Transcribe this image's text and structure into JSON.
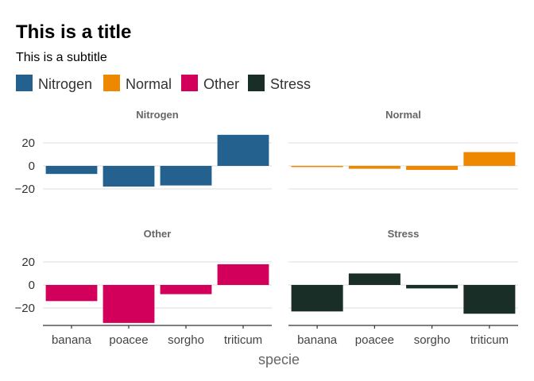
{
  "chart_data": {
    "type": "bar",
    "title": "This is a title",
    "subtitle": "This is a subtitle",
    "xlabel": "specie",
    "ylabel": "",
    "categories": [
      "banana",
      "poacee",
      "sorgho",
      "triticum"
    ],
    "ylim": [
      -35,
      30
    ],
    "yticks": [
      -20,
      0,
      20
    ],
    "grid": true,
    "legend": "top-left",
    "facets": [
      {
        "name": "Nitrogen",
        "color": "#24618f",
        "values": [
          -7,
          -18,
          -17,
          27
        ]
      },
      {
        "name": "Normal",
        "color": "#ee8800",
        "values": [
          -1,
          -2.5,
          -3.5,
          12
        ]
      },
      {
        "name": "Other",
        "color": "#d2005a",
        "values": [
          -14,
          -33,
          -8,
          18
        ]
      },
      {
        "name": "Stress",
        "color": "#1a2e28",
        "values": [
          -23,
          10,
          -3,
          -25
        ]
      }
    ]
  }
}
